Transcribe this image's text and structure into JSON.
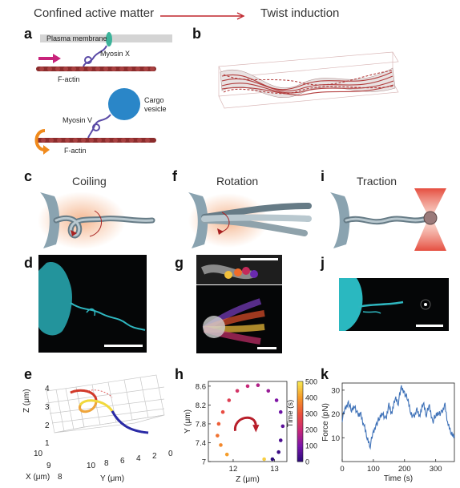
{
  "header": {
    "left": "Confined active matter",
    "right": "Twist induction",
    "arrow_color": "#c0262d"
  },
  "panel_letters": {
    "a": "a",
    "b": "b",
    "c": "c",
    "d": "d",
    "e": "e",
    "f": "f",
    "g": "g",
    "h": "h",
    "i": "i",
    "j": "j",
    "k": "k"
  },
  "panel_a": {
    "plasma_membrane": "Plasma membrane",
    "myosin_x": "Myosin X",
    "f_actin_top": "F-actin",
    "myosin_v": "Myosin V",
    "cargo_vesicle_1": "Cargo",
    "cargo_vesicle_2": "vesicle",
    "f_actin_bottom": "F-actin",
    "colors": {
      "actin": "#8b2c2c",
      "myosin": "#5a4aa6",
      "vesicle": "#2a86c8",
      "arrow_pink": "#c8237b",
      "arrow_orange": "#f08a1c",
      "membrane_protein": "#3cb39a"
    }
  },
  "panel_titles": {
    "coiling": "Coiling",
    "rotation": "Rotation",
    "traction": "Traction"
  },
  "panel_e": {
    "z_label": "Z (μm)",
    "x_label": "X (μm)",
    "y_label": "Y (μm)",
    "z_ticks": [
      "4",
      "3",
      "2",
      "1"
    ],
    "x_ticks": [
      "10",
      "9",
      "8"
    ],
    "y_ticks": [
      "10",
      "8",
      "6",
      "4",
      "2",
      "0"
    ]
  },
  "chart_data": [
    {
      "type": "scatter",
      "panel": "h",
      "xlabel": "Z (μm)",
      "ylabel": "Y (μm)",
      "xlim": [
        11.4,
        13.3
      ],
      "ylim": [
        7.0,
        8.7
      ],
      "x_ticks": [
        "12",
        "13"
      ],
      "y_ticks": [
        "8.6",
        "8.2",
        "7.8",
        "7.4",
        "7"
      ],
      "colorbar": {
        "label": "Time (s)",
        "ticks": [
          "500",
          "400",
          "300",
          "200",
          "100",
          "0"
        ],
        "range": [
          0,
          500
        ]
      },
      "points": [
        {
          "x": 12.95,
          "y": 7.05,
          "t": 5
        },
        {
          "x": 13.1,
          "y": 7.2,
          "t": 25
        },
        {
          "x": 13.15,
          "y": 7.45,
          "t": 45
        },
        {
          "x": 13.2,
          "y": 7.75,
          "t": 65
        },
        {
          "x": 13.15,
          "y": 8.05,
          "t": 85
        },
        {
          "x": 13.05,
          "y": 8.3,
          "t": 110
        },
        {
          "x": 12.85,
          "y": 8.5,
          "t": 140
        },
        {
          "x": 12.6,
          "y": 8.62,
          "t": 170
        },
        {
          "x": 12.35,
          "y": 8.6,
          "t": 200
        },
        {
          "x": 12.1,
          "y": 8.5,
          "t": 230
        },
        {
          "x": 11.9,
          "y": 8.3,
          "t": 260
        },
        {
          "x": 11.75,
          "y": 8.05,
          "t": 290
        },
        {
          "x": 11.65,
          "y": 7.8,
          "t": 320
        },
        {
          "x": 11.62,
          "y": 7.55,
          "t": 350
        },
        {
          "x": 11.7,
          "y": 7.35,
          "t": 380
        },
        {
          "x": 11.85,
          "y": 7.15,
          "t": 410
        },
        {
          "x": 12.75,
          "y": 7.05,
          "t": 470
        }
      ]
    },
    {
      "type": "line",
      "panel": "k",
      "xlabel": "Time (s)",
      "ylabel": "Force (pN)",
      "xlim": [
        0,
        360
      ],
      "ylim": [
        0,
        33
      ],
      "x_ticks": [
        0,
        100,
        200,
        300
      ],
      "y_ticks": [
        10,
        20,
        30
      ],
      "color": "#3f72b8",
      "series": [
        {
          "x": [
            0,
            10,
            20,
            30,
            40,
            50,
            60,
            70,
            80,
            90,
            100,
            110,
            120,
            130,
            140,
            150,
            160,
            170,
            180,
            190,
            200,
            210,
            220,
            230,
            240,
            250,
            260,
            270,
            280,
            290,
            300,
            310,
            320,
            330,
            340,
            350,
            360
          ],
          "values": [
            18,
            22,
            25,
            21,
            24,
            19,
            20,
            15,
            10,
            7,
            12,
            16,
            18,
            21,
            17,
            24,
            20,
            27,
            25,
            31,
            29,
            26,
            21,
            18,
            22,
            19,
            25,
            20,
            23,
            17,
            19,
            21,
            20,
            24,
            15,
            12,
            11
          ]
        }
      ]
    }
  ]
}
